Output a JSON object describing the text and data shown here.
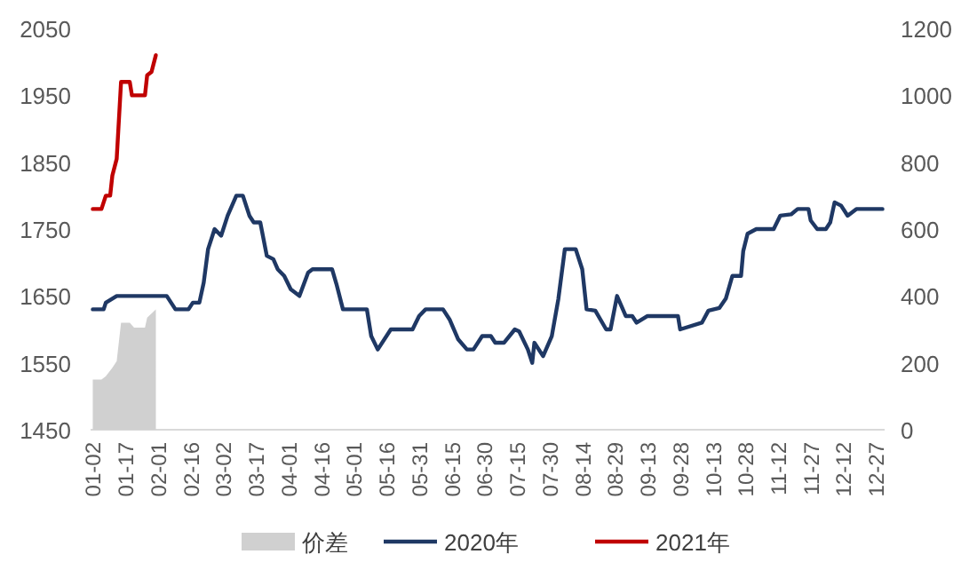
{
  "chart_data": {
    "type": "line",
    "xlim": [
      "--01-01",
      "--12-31"
    ],
    "xticks": [
      {
        "value": "--01-02",
        "label": "01-02"
      },
      {
        "value": "--01-17",
        "label": "01-17"
      },
      {
        "value": "--02-01",
        "label": "02-01"
      },
      {
        "value": "--02-16",
        "label": "02-16"
      },
      {
        "value": "--03-02",
        "label": "03-02"
      },
      {
        "value": "--03-17",
        "label": "03-17"
      },
      {
        "value": "--04-01",
        "label": "04-01"
      },
      {
        "value": "--04-16",
        "label": "04-16"
      },
      {
        "value": "--05-01",
        "label": "05-01"
      },
      {
        "value": "--05-16",
        "label": "05-16"
      },
      {
        "value": "--05-31",
        "label": "05-31"
      },
      {
        "value": "--06-15",
        "label": "06-15"
      },
      {
        "value": "--06-30",
        "label": "06-30"
      },
      {
        "value": "--07-15",
        "label": "07-15"
      },
      {
        "value": "--07-30",
        "label": "07-30"
      },
      {
        "value": "--08-14",
        "label": "08-14"
      },
      {
        "value": "--08-29",
        "label": "08-29"
      },
      {
        "value": "--09-13",
        "label": "09-13"
      },
      {
        "value": "--09-28",
        "label": "09-28"
      },
      {
        "value": "--10-13",
        "label": "10-13"
      },
      {
        "value": "--10-28",
        "label": "10-28"
      },
      {
        "value": "--11-12",
        "label": "11-12"
      },
      {
        "value": "--11-27",
        "label": "11-27"
      },
      {
        "value": "--12-12",
        "label": "12-12"
      },
      {
        "value": "--12-27",
        "label": "12-27"
      }
    ],
    "ylim": [
      1450,
      2050
    ],
    "yticks": [
      1450,
      1550,
      1650,
      1750,
      1850,
      1950,
      2050
    ],
    "y2lim": [
      0,
      1200
    ],
    "y2ticks": [
      0,
      200,
      400,
      600,
      800,
      1000,
      1200
    ],
    "legend": "bottom",
    "series": [
      {
        "name": "价差",
        "type": "area",
        "axis": "y2",
        "color": "#d0d0d0",
        "x": [
          "--01-02",
          "--01-06",
          "--01-08",
          "--01-11",
          "--01-13",
          "--01-15",
          "--01-19",
          "--01-21",
          "--01-26",
          "--01-27",
          "--01-31"
        ],
        "values": [
          150,
          150,
          160,
          185,
          205,
          320,
          320,
          305,
          305,
          335,
          360
        ]
      },
      {
        "name": "2020年",
        "color": "#1f3864",
        "x": [
          "--01-02",
          "--01-07",
          "--01-08",
          "--01-13",
          "--02-05",
          "--02-09",
          "--02-15",
          "--02-17",
          "--02-20",
          "--02-22",
          "--02-24",
          "--02-27",
          "--03-01",
          "--03-04",
          "--03-08",
          "--03-11",
          "--03-14",
          "--03-16",
          "--03-19",
          "--03-22",
          "--03-25",
          "--03-27",
          "--03-30",
          "--04-02",
          "--04-06",
          "--04-10",
          "--04-12",
          "--04-21",
          "--04-23",
          "--04-26",
          "--05-07",
          "--05-09",
          "--05-12",
          "--05-18",
          "--05-28",
          "--05-31",
          "--06-03",
          "--06-11",
          "--06-14",
          "--06-18",
          "--06-22",
          "--06-25",
          "--06-29",
          "--07-03",
          "--07-05",
          "--07-09",
          "--07-14",
          "--07-16",
          "--07-20",
          "--07-22",
          "--07-23",
          "--07-27",
          "--07-31",
          "--08-03",
          "--08-06",
          "--08-11",
          "--08-14",
          "--08-16",
          "--08-20",
          "--08-25",
          "--08-27",
          "--08-30",
          "--09-03",
          "--09-06",
          "--09-08",
          "--09-13",
          "--09-27",
          "--09-28",
          "--10-08",
          "--10-11",
          "--10-16",
          "--10-19",
          "--10-22",
          "--10-26",
          "--10-27",
          "--10-29",
          "--11-02",
          "--11-10",
          "--11-13",
          "--11-18",
          "--11-21",
          "--11-26",
          "--11-27",
          "--11-30",
          "--12-04",
          "--12-06",
          "--12-08",
          "--12-11",
          "--12-14",
          "--12-18",
          "--12-30"
        ],
        "values": [
          1630,
          1630,
          1640,
          1650,
          1650,
          1630,
          1630,
          1640,
          1640,
          1670,
          1720,
          1750,
          1740,
          1770,
          1800,
          1800,
          1770,
          1760,
          1760,
          1710,
          1705,
          1690,
          1680,
          1660,
          1650,
          1685,
          1690,
          1690,
          1668,
          1630,
          1630,
          1590,
          1570,
          1600,
          1600,
          1620,
          1630,
          1630,
          1615,
          1585,
          1570,
          1570,
          1590,
          1590,
          1580,
          1580,
          1600,
          1597,
          1570,
          1550,
          1580,
          1560,
          1590,
          1645,
          1720,
          1720,
          1690,
          1630,
          1628,
          1600,
          1600,
          1650,
          1620,
          1620,
          1610,
          1620,
          1620,
          1600,
          1610,
          1628,
          1632,
          1646,
          1680,
          1680,
          1717,
          1743,
          1750,
          1750,
          1770,
          1772,
          1780,
          1780,
          1763,
          1750,
          1750,
          1760,
          1790,
          1785,
          1770,
          1780,
          1780
        ]
      },
      {
        "name": "2021年",
        "color": "#c00000",
        "x": [
          "--01-02",
          "--01-06",
          "--01-08",
          "--01-10",
          "--01-11",
          "--01-13",
          "--01-15",
          "--01-19",
          "--01-20",
          "--01-26",
          "--01-27",
          "--01-29",
          "--01-31"
        ],
        "values": [
          1780,
          1780,
          1800,
          1800,
          1830,
          1855,
          1970,
          1970,
          1950,
          1950,
          1980,
          1985,
          2010
        ]
      }
    ]
  }
}
